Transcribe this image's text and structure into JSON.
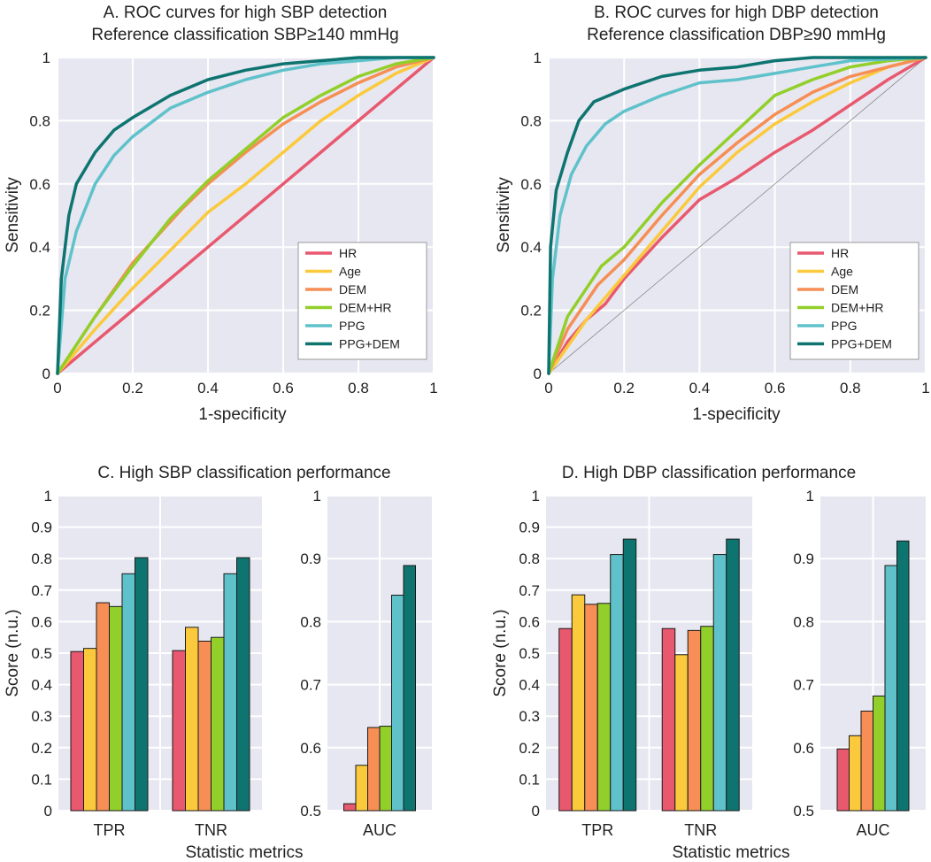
{
  "figure": {
    "colors": {
      "HR": "#E8596F",
      "Age": "#FBC93C",
      "DEM": "#F68E55",
      "DEM+HR": "#92CF2A",
      "PPG": "#5FC2CA",
      "PPG+DEM": "#0E7470",
      "bg": "#E7E7F1",
      "grid": "#ffffff"
    }
  },
  "chart_data": [
    {
      "id": "A",
      "type": "line",
      "title": "A. ROC curves for high SBP detection",
      "subtitle": "Reference classification SBP≥140 mmHg",
      "xlabel": "1-specificity",
      "ylabel": "Sensitivity",
      "xlim": [
        0,
        1
      ],
      "ylim": [
        0,
        1
      ],
      "xticks": [
        "0",
        "0.2",
        "0.4",
        "0.6",
        "0.8",
        "1"
      ],
      "yticks": [
        "0",
        "0.2",
        "0.4",
        "0.6",
        "0.8",
        "1"
      ],
      "grid": true,
      "legend_position": "bottom-right",
      "series": [
        {
          "name": "HR",
          "color": "#E8596F",
          "x": [
            0,
            0.05,
            0.1,
            0.2,
            0.3,
            0.4,
            0.5,
            0.6,
            0.7,
            0.8,
            0.9,
            1
          ],
          "y": [
            0,
            0.05,
            0.1,
            0.2,
            0.3,
            0.4,
            0.5,
            0.6,
            0.7,
            0.8,
            0.9,
            1
          ]
        },
        {
          "name": "Age",
          "color": "#FBC93C",
          "x": [
            0,
            0.1,
            0.2,
            0.3,
            0.4,
            0.5,
            0.6,
            0.7,
            0.8,
            0.9,
            1
          ],
          "y": [
            0,
            0.14,
            0.27,
            0.39,
            0.51,
            0.6,
            0.7,
            0.8,
            0.88,
            0.95,
            1
          ]
        },
        {
          "name": "DEM",
          "color": "#F68E55",
          "x": [
            0,
            0.1,
            0.2,
            0.33,
            0.4,
            0.5,
            0.6,
            0.7,
            0.8,
            0.9,
            1
          ],
          "y": [
            0,
            0.18,
            0.35,
            0.52,
            0.6,
            0.7,
            0.79,
            0.86,
            0.92,
            0.97,
            1
          ]
        },
        {
          "name": "DEM+HR",
          "color": "#92CF2A",
          "x": [
            0,
            0.1,
            0.2,
            0.3,
            0.4,
            0.5,
            0.6,
            0.7,
            0.8,
            0.9,
            1
          ],
          "y": [
            0,
            0.18,
            0.34,
            0.49,
            0.61,
            0.71,
            0.81,
            0.88,
            0.94,
            0.98,
            1
          ]
        },
        {
          "name": "PPG",
          "color": "#5FC2CA",
          "x": [
            0,
            0.02,
            0.05,
            0.1,
            0.15,
            0.2,
            0.3,
            0.4,
            0.5,
            0.6,
            0.7,
            0.8,
            0.9,
            1
          ],
          "y": [
            0,
            0.3,
            0.45,
            0.6,
            0.69,
            0.75,
            0.84,
            0.89,
            0.93,
            0.96,
            0.98,
            0.99,
            1,
            1
          ]
        },
        {
          "name": "PPG+DEM",
          "color": "#0E7470",
          "x": [
            0,
            0.01,
            0.03,
            0.05,
            0.1,
            0.15,
            0.2,
            0.3,
            0.4,
            0.5,
            0.6,
            0.7,
            0.8,
            1
          ],
          "y": [
            0,
            0.3,
            0.5,
            0.6,
            0.7,
            0.77,
            0.81,
            0.88,
            0.93,
            0.96,
            0.98,
            0.99,
            1,
            1
          ]
        }
      ],
      "diagonal": true
    },
    {
      "id": "B",
      "type": "line",
      "title": "B. ROC curves for high DBP detection",
      "subtitle": "Reference classification DBP≥90 mmHg",
      "xlabel": "1-specificity",
      "ylabel": "Sensitivity",
      "xlim": [
        0,
        1
      ],
      "ylim": [
        0,
        1
      ],
      "xticks": [
        "0",
        "0.2",
        "0.4",
        "0.6",
        "0.8",
        "1"
      ],
      "yticks": [
        "0",
        "0.2",
        "0.4",
        "0.6",
        "0.8",
        "1"
      ],
      "grid": true,
      "legend_position": "bottom-right",
      "series": [
        {
          "name": "HR",
          "color": "#E8596F",
          "x": [
            0,
            0.05,
            0.1,
            0.15,
            0.2,
            0.3,
            0.4,
            0.5,
            0.6,
            0.7,
            0.8,
            0.9,
            1
          ],
          "y": [
            0,
            0.1,
            0.17,
            0.22,
            0.3,
            0.43,
            0.55,
            0.62,
            0.7,
            0.77,
            0.85,
            0.93,
            1
          ]
        },
        {
          "name": "Age",
          "color": "#FBC93C",
          "x": [
            0,
            0.1,
            0.2,
            0.3,
            0.4,
            0.5,
            0.6,
            0.7,
            0.8,
            0.9,
            1
          ],
          "y": [
            0,
            0.17,
            0.31,
            0.45,
            0.59,
            0.7,
            0.79,
            0.86,
            0.92,
            0.97,
            1
          ]
        },
        {
          "name": "DEM",
          "color": "#F68E55",
          "x": [
            0,
            0.05,
            0.13,
            0.2,
            0.3,
            0.4,
            0.5,
            0.6,
            0.7,
            0.8,
            0.9,
            1
          ],
          "y": [
            0,
            0.14,
            0.28,
            0.36,
            0.5,
            0.63,
            0.73,
            0.82,
            0.89,
            0.94,
            0.97,
            1
          ]
        },
        {
          "name": "DEM+HR",
          "color": "#92CF2A",
          "x": [
            0,
            0.05,
            0.14,
            0.2,
            0.3,
            0.4,
            0.5,
            0.6,
            0.7,
            0.8,
            0.9,
            1
          ],
          "y": [
            0,
            0.18,
            0.34,
            0.4,
            0.54,
            0.66,
            0.77,
            0.88,
            0.93,
            0.97,
            0.99,
            1
          ]
        },
        {
          "name": "PPG",
          "color": "#5FC2CA",
          "x": [
            0,
            0.01,
            0.03,
            0.06,
            0.1,
            0.15,
            0.2,
            0.3,
            0.4,
            0.5,
            0.6,
            0.7,
            0.8,
            1
          ],
          "y": [
            0,
            0.3,
            0.5,
            0.63,
            0.72,
            0.79,
            0.83,
            0.88,
            0.92,
            0.93,
            0.95,
            0.97,
            0.99,
            1
          ]
        },
        {
          "name": "PPG+DEM",
          "color": "#0E7470",
          "x": [
            0,
            0.005,
            0.02,
            0.05,
            0.08,
            0.12,
            0.2,
            0.3,
            0.4,
            0.5,
            0.6,
            0.7,
            0.8,
            1
          ],
          "y": [
            0,
            0.4,
            0.58,
            0.7,
            0.8,
            0.86,
            0.9,
            0.94,
            0.96,
            0.97,
            0.99,
            1,
            1,
            1
          ]
        }
      ],
      "diagonal": true
    },
    {
      "id": "C",
      "type": "bar",
      "title": "C. High SBP classification performance",
      "xlabel": "Statistic metrics",
      "ylabel": "Score (n.u.)",
      "series_names": [
        "HR",
        "Age",
        "DEM",
        "DEM+HR",
        "PPG",
        "PPG+DEM"
      ],
      "left": {
        "categories": [
          "TPR",
          "TNR"
        ],
        "ylim": [
          0,
          1
        ],
        "yticks": [
          "0",
          "0.1",
          "0.2",
          "0.3",
          "0.4",
          "0.5",
          "0.6",
          "0.7",
          "0.8",
          "0.9",
          "1"
        ],
        "values": [
          [
            0.505,
            0.515,
            0.66,
            0.648,
            0.752,
            0.803
          ],
          [
            0.508,
            0.582,
            0.538,
            0.55,
            0.752,
            0.803
          ]
        ]
      },
      "right": {
        "categories": [
          "AUC"
        ],
        "ylim": [
          0.5,
          1
        ],
        "yticks": [
          "0.5",
          "0.6",
          "0.7",
          "0.8",
          "0.9",
          "1"
        ],
        "values": [
          [
            0.511,
            0.572,
            0.632,
            0.634,
            0.842,
            0.889
          ]
        ]
      }
    },
    {
      "id": "D",
      "type": "bar",
      "title": "D. High DBP classification performance",
      "xlabel": "Statistic metrics",
      "ylabel": "Score (n.u.)",
      "series_names": [
        "HR",
        "Age",
        "DEM",
        "DEM+HR",
        "PPG",
        "PPG+DEM"
      ],
      "left": {
        "categories": [
          "TPR",
          "TNR"
        ],
        "ylim": [
          0,
          1
        ],
        "yticks": [
          "0",
          "0.1",
          "0.2",
          "0.3",
          "0.4",
          "0.5",
          "0.6",
          "0.7",
          "0.8",
          "0.9",
          "1"
        ],
        "values": [
          [
            0.578,
            0.685,
            0.655,
            0.658,
            0.813,
            0.862
          ],
          [
            0.578,
            0.495,
            0.572,
            0.585,
            0.813,
            0.862
          ]
        ]
      },
      "right": {
        "categories": [
          "AUC"
        ],
        "ylim": [
          0.5,
          1
        ],
        "yticks": [
          "0.5",
          "0.6",
          "0.7",
          "0.8",
          "0.9",
          "1"
        ],
        "values": [
          [
            0.598,
            0.619,
            0.658,
            0.682,
            0.889,
            0.928
          ]
        ]
      }
    }
  ]
}
